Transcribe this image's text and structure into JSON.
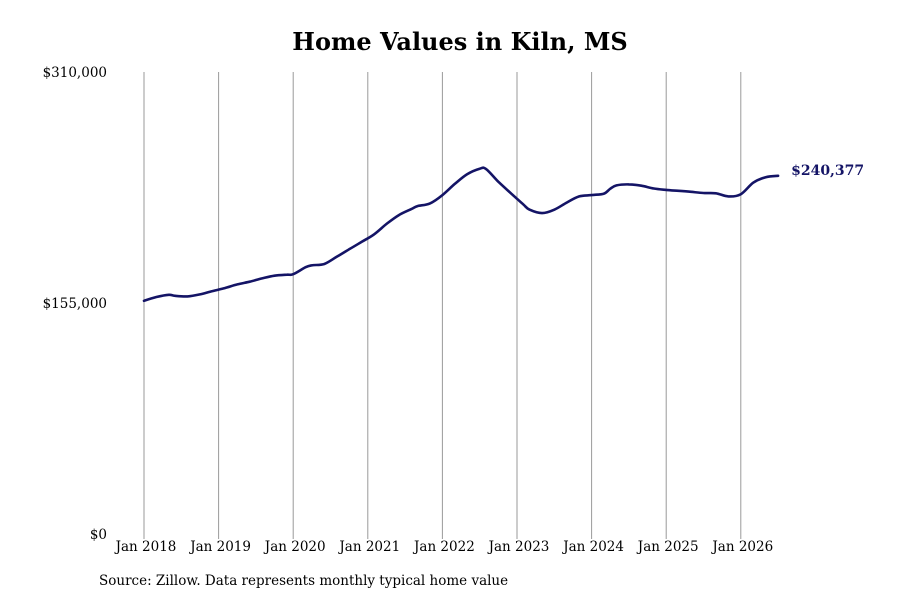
{
  "chart_data": {
    "type": "line",
    "title": "Home Values in Kiln, MS",
    "xlabel": "",
    "ylabel": "",
    "ylim": [
      0,
      310000
    ],
    "y_ticks": [
      {
        "value": 0,
        "label": "$0"
      },
      {
        "value": 155000,
        "label": "$155,000"
      },
      {
        "value": 310000,
        "label": "$310,000"
      }
    ],
    "x_ticks": [
      {
        "value": "2018-01",
        "label": "Jan 2018"
      },
      {
        "value": "2019-01",
        "label": "Jan 2019"
      },
      {
        "value": "2020-01",
        "label": "Jan 2020"
      },
      {
        "value": "2021-01",
        "label": "Jan 2021"
      },
      {
        "value": "2022-01",
        "label": "Jan 2022"
      },
      {
        "value": "2023-01",
        "label": "Jan 2023"
      },
      {
        "value": "2024-01",
        "label": "Jan 2024"
      },
      {
        "value": "2025-01",
        "label": "Jan 2025"
      },
      {
        "value": "2026-01",
        "label": "Jan 2026"
      }
    ],
    "grid": "vertical",
    "line_color": "#141466",
    "series": [
      {
        "x": [
          "2018-01",
          "2018-03",
          "2018-05",
          "2018-06",
          "2018-08",
          "2018-10",
          "2018-12",
          "2019-02",
          "2019-04",
          "2019-06",
          "2019-08",
          "2019-10",
          "2019-12",
          "2020-01",
          "2020-03",
          "2020-04",
          "2020-06",
          "2020-08",
          "2020-10",
          "2020-12",
          "2021-02",
          "2021-04",
          "2021-06",
          "2021-08",
          "2021-09",
          "2021-11",
          "2022-01",
          "2022-03",
          "2022-05",
          "2022-07",
          "2022-08",
          "2022-10",
          "2022-12",
          "2023-02",
          "2023-03",
          "2023-05",
          "2023-07",
          "2023-09",
          "2023-11",
          "2024-01",
          "2024-03",
          "2024-04",
          "2024-05",
          "2024-07",
          "2024-09",
          "2024-11",
          "2025-01",
          "2025-03",
          "2025-05",
          "2025-07",
          "2025-09",
          "2025-11",
          "2026-01",
          "2026-03",
          "2026-05",
          "2026-07"
        ],
        "y": [
          156500,
          159000,
          160500,
          159800,
          159400,
          160800,
          163000,
          165000,
          167500,
          169300,
          171500,
          173300,
          174000,
          174300,
          179000,
          180300,
          181200,
          186000,
          191000,
          196000,
          201000,
          208000,
          214000,
          218000,
          220000,
          221800,
          227400,
          234900,
          241500,
          245100,
          245000,
          236400,
          228700,
          221200,
          217700,
          215300,
          217600,
          222400,
          226500,
          227400,
          228400,
          231700,
          233900,
          234600,
          233700,
          231800,
          230900,
          230300,
          229600,
          228800,
          228600,
          226500,
          228000,
          235700,
          239400,
          240377
        ]
      }
    ],
    "end_label": "$240,377",
    "source": "Source: Zillow. Data represents monthly typical home value"
  }
}
